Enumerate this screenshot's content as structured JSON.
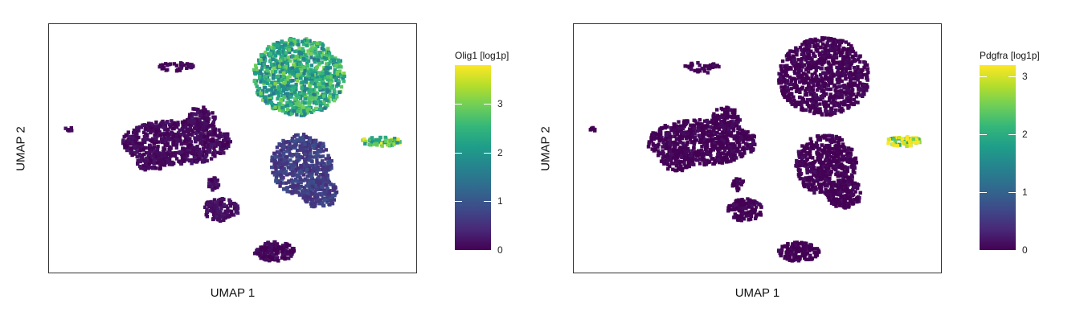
{
  "chart_data": [
    {
      "type": "scatter",
      "subtype": "UMAP embedding colored by gene expression (viridis)",
      "feature": "Olig1",
      "xlabel": "UMAP 1",
      "ylabel": "UMAP 2",
      "legend_title": "Olig1 [log1p]",
      "legend_placement": "right",
      "color_scale": {
        "min": 0,
        "max": 3.8,
        "ticks": [
          "0",
          "1",
          "2",
          "3"
        ],
        "palette": [
          "#440154",
          "#3e4a89",
          "#26828e",
          "#35b779",
          "#fde725"
        ]
      },
      "grid": false,
      "clusters": [
        {
          "id": "top-right-oval",
          "mean_value": 2.3
        },
        {
          "id": "left-large",
          "mean_value": 0.1
        },
        {
          "id": "center-right",
          "mean_value": 0.7
        },
        {
          "id": "far-right-small",
          "mean_value": 2.8
        },
        {
          "id": "bottom-small",
          "mean_value": 0.05
        },
        {
          "id": "lower-left-small",
          "mean_value": 0.15
        },
        {
          "id": "top-left-specks",
          "mean_value": 0.05
        }
      ]
    },
    {
      "type": "scatter",
      "subtype": "UMAP embedding colored by gene expression (viridis)",
      "feature": "Pdgfra",
      "xlabel": "UMAP 1",
      "ylabel": "UMAP 2",
      "legend_title": "Pdgfra [log1p]",
      "legend_placement": "right",
      "color_scale": {
        "min": 0,
        "max": 3.2,
        "ticks": [
          "0",
          "1",
          "2",
          "3"
        ],
        "palette": [
          "#440154",
          "#3e4a89",
          "#26828e",
          "#35b779",
          "#fde725"
        ]
      },
      "grid": false,
      "clusters": [
        {
          "id": "top-right-oval",
          "mean_value": 0.0
        },
        {
          "id": "left-large",
          "mean_value": 0.0
        },
        {
          "id": "center-right",
          "mean_value": 0.0
        },
        {
          "id": "far-right-small",
          "mean_value": 2.6
        },
        {
          "id": "bottom-small",
          "mean_value": 0.0
        },
        {
          "id": "lower-left-small",
          "mean_value": 0.0
        },
        {
          "id": "top-left-specks",
          "mean_value": 0.0
        }
      ]
    }
  ]
}
